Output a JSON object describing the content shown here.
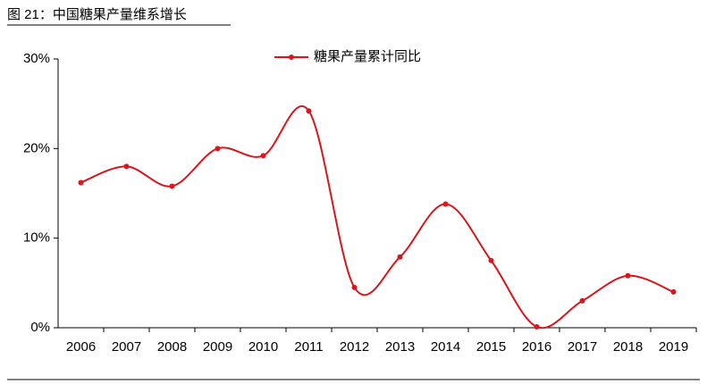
{
  "chart_data": {
    "type": "line",
    "title": "图 21：中国糖果产量维系增长",
    "categories": [
      "2006",
      "2007",
      "2008",
      "2009",
      "2010",
      "2011",
      "2012",
      "2013",
      "2014",
      "2015",
      "2016",
      "2017",
      "2018",
      "2019"
    ],
    "series": [
      {
        "name": "糖果产量累计同比",
        "color": "#d9161c",
        "values": [
          16.2,
          18.0,
          15.8,
          20.0,
          19.2,
          24.2,
          4.5,
          7.9,
          13.8,
          7.5,
          0.1,
          3.0,
          5.8,
          4.0
        ]
      }
    ],
    "ylim": [
      0,
      30
    ],
    "yticks": [
      {
        "value": 0,
        "label": "0%"
      },
      {
        "value": 10,
        "label": "10%"
      },
      {
        "value": 20,
        "label": "20%"
      },
      {
        "value": 30,
        "label": "30%"
      }
    ]
  }
}
